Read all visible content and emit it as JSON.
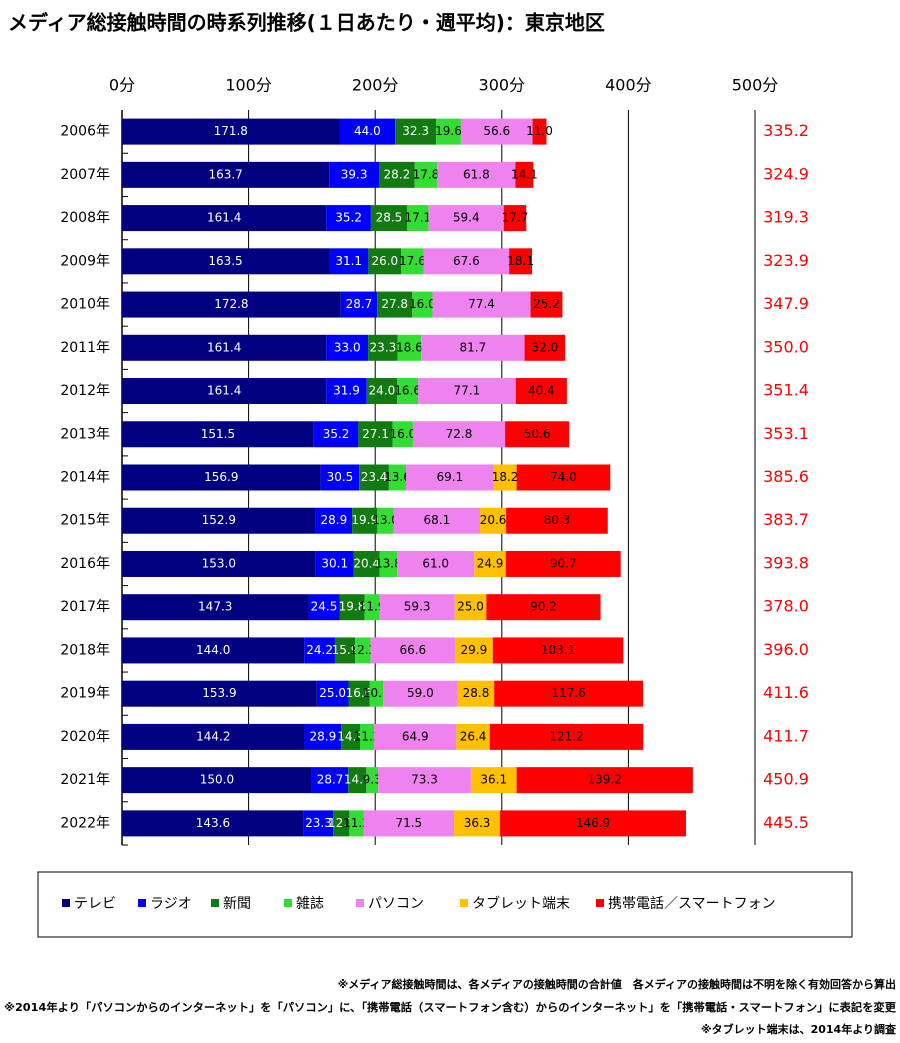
{
  "chart_data": {
    "type": "stacked-bar-horizontal",
    "title": "メディア総接触時間の時系列推移(１日あたり・週平均)：東京地区",
    "categories": [
      "2006年",
      "2007年",
      "2008年",
      "2009年",
      "2010年",
      "2011年",
      "2012年",
      "2013年",
      "2014年",
      "2015年",
      "2016年",
      "2017年",
      "2018年",
      "2019年",
      "2020年",
      "2021年",
      "2022年"
    ],
    "xlim": [
      0,
      500
    ],
    "xticks": [
      {
        "value": 0,
        "label": "0分"
      },
      {
        "value": 100,
        "label": "100分"
      },
      {
        "value": 200,
        "label": "200分"
      },
      {
        "value": 300,
        "label": "300分"
      },
      {
        "value": 400,
        "label": "400分"
      },
      {
        "value": 500,
        "label": "500分"
      }
    ],
    "grid": true,
    "series": [
      {
        "name": "テレビ",
        "color": "#000080",
        "label_color": "#ffffff",
        "values": [
          171.8,
          163.7,
          161.4,
          163.5,
          172.8,
          161.4,
          161.4,
          151.5,
          156.9,
          152.9,
          153.0,
          147.3,
          144.0,
          153.9,
          144.2,
          150.0,
          143.6
        ],
        "value_labels": [
          "171.8",
          "163.7",
          "161.4",
          "163.5",
          "172.8",
          "161.4",
          "161.4",
          "151.5",
          "156.9",
          "152.9",
          "153.0",
          "147.3",
          "144.0",
          "153.9",
          "144.2",
          "150.0",
          "143.6"
        ]
      },
      {
        "name": "ラジオ",
        "color": "#0000ff",
        "label_color": "#ffffff",
        "values": [
          44.0,
          39.3,
          35.2,
          31.1,
          28.7,
          33.0,
          31.9,
          35.2,
          30.5,
          28.9,
          30.1,
          24.5,
          24.2,
          25.0,
          28.9,
          28.7,
          23.3
        ],
        "value_labels": [
          "44.0",
          "39.3",
          "35.2",
          "31.1",
          "28.7",
          "33.0",
          "31.9",
          "35.2",
          "30.5",
          "28.9",
          "30.1",
          "24.5",
          "24.2",
          "25.0",
          "28.9",
          "28.7",
          "23.3"
        ]
      },
      {
        "name": "新聞",
        "color": "#117a11",
        "label_color": "#ffffff",
        "values": [
          32.3,
          28.2,
          28.5,
          26.0,
          27.8,
          23.3,
          24.0,
          27.1,
          23.4,
          19.9,
          20.4,
          19.8,
          15.9,
          16.6,
          14.9,
          14.3,
          12.7
        ],
        "value_labels": [
          "32.3",
          "28.2",
          "28.5",
          "26.0",
          "27.8",
          "23.3",
          "24.0",
          "27.1",
          "23.4",
          "19.9",
          "20.4",
          "19.8",
          "15.9",
          "16.6",
          "14.9",
          "14.3",
          "12.7"
        ]
      },
      {
        "name": "雑誌",
        "color": "#33dd33",
        "label_color": "#000000",
        "values": [
          19.6,
          17.8,
          17.1,
          17.6,
          16.0,
          18.6,
          16.6,
          16.0,
          13.6,
          13.0,
          13.8,
          11.9,
          12.3,
          10.7,
          11.2,
          9.3,
          11.2
        ],
        "value_labels": [
          "19.6",
          "17.8",
          "17.1",
          "17.6",
          "16.0",
          "18.6",
          "16.6",
          "16.0",
          "13.6",
          "13.0",
          "13.8",
          "11.9",
          "12.3",
          "10.7",
          "11.2",
          "9.3",
          "11.2"
        ]
      },
      {
        "name": "パソコン",
        "color": "#ee82ee",
        "label_color": "#000000",
        "values": [
          56.6,
          61.8,
          59.4,
          67.6,
          77.4,
          81.7,
          77.1,
          72.8,
          69.1,
          68.1,
          61.0,
          59.3,
          66.6,
          59.0,
          64.9,
          73.3,
          71.5
        ],
        "value_labels": [
          "56.6",
          "61.8",
          "59.4",
          "67.6",
          "77.4",
          "81.7",
          "77.1",
          "72.8",
          "69.1",
          "68.1",
          "61.0",
          "59.3",
          "66.6",
          "59.0",
          "64.9",
          "73.3",
          "71.5"
        ]
      },
      {
        "name": "タブレット端末",
        "color": "#ffc000",
        "label_color": "#000000",
        "values": [
          null,
          null,
          null,
          null,
          null,
          null,
          null,
          null,
          18.2,
          20.6,
          24.9,
          25.0,
          29.9,
          28.8,
          26.4,
          36.1,
          36.3
        ],
        "value_labels": [
          null,
          null,
          null,
          null,
          null,
          null,
          null,
          null,
          "18.2",
          "20.6",
          "24.9",
          "25.0",
          "29.9",
          "28.8",
          "26.4",
          "36.1",
          "36.3"
        ]
      },
      {
        "name": "携帯電話／スマートフォン",
        "color": "#ff0000",
        "label_color": "#000000",
        "values": [
          11.0,
          14.1,
          17.7,
          18.1,
          25.2,
          32.0,
          40.4,
          50.6,
          74.0,
          80.3,
          90.7,
          90.2,
          103.1,
          117.6,
          121.2,
          139.2,
          146.9
        ],
        "value_labels": [
          "11.0",
          "14.1",
          "17.7",
          "18.1",
          "25.2",
          "32.0",
          "40.4",
          "50.6",
          "74.0",
          "80.3",
          "90.7",
          "90.2",
          "103.1",
          "117.6",
          "121.2",
          "139.2",
          "146.9"
        ]
      }
    ],
    "totals": {
      "color": "#ff0000",
      "values": [
        335.2,
        324.9,
        319.3,
        323.9,
        347.9,
        350.0,
        351.4,
        353.1,
        385.6,
        383.7,
        393.8,
        378.0,
        396.0,
        411.6,
        411.7,
        450.9,
        445.5
      ],
      "value_labels": [
        "335.2",
        "324.9",
        "319.3",
        "323.9",
        "347.9",
        "350.0",
        "351.4",
        "353.1",
        "385.6",
        "383.7",
        "393.8",
        "378.0",
        "396.0",
        "411.6",
        "411.7",
        "450.9",
        "445.5"
      ]
    },
    "notes": [
      "※メディア総接触時間は、各メディアの接触時間の合計値　各メディアの接触時間は不明を除く有効回答から算出",
      "※2014年より「パソコンからのインターネット」を「パソコン」に、「携帯電話（スマートフォン含む）からのインターネット」を「携帯電話・スマートフォン」に表記を変更",
      "※タブレット端末は、2014年より調査"
    ]
  }
}
